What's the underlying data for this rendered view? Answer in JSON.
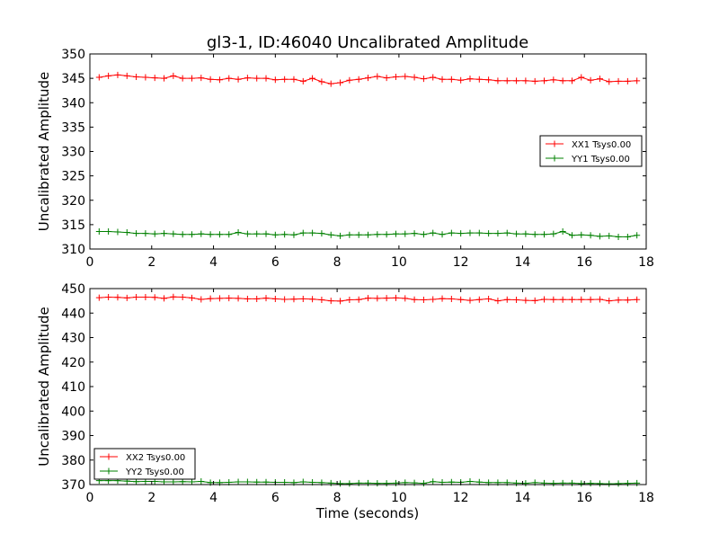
{
  "figure": {
    "title": "gl3-1, ID:46040 Uncalibrated Amplitude",
    "xlabel": "Time (seconds)"
  },
  "chart_data": [
    {
      "type": "line",
      "title": "gl3-1, ID:46040 Uncalibrated Amplitude",
      "xlabel": "",
      "ylabel": "Uncalibrated Amplitude",
      "xlim": [
        0,
        18
      ],
      "ylim": [
        310,
        350
      ],
      "xticks": [
        0,
        2,
        4,
        6,
        8,
        10,
        12,
        14,
        16,
        18
      ],
      "yticks": [
        310,
        315,
        320,
        325,
        330,
        335,
        340,
        345,
        350
      ],
      "grid": false,
      "legend_position": "center-right",
      "x": [
        0.3,
        0.6,
        0.9,
        1.2,
        1.5,
        1.8,
        2.1,
        2.4,
        2.7,
        3.0,
        3.3,
        3.6,
        3.9,
        4.2,
        4.5,
        4.8,
        5.1,
        5.4,
        5.7,
        6.0,
        6.3,
        6.6,
        6.9,
        7.2,
        7.5,
        7.8,
        8.1,
        8.4,
        8.7,
        9.0,
        9.3,
        9.6,
        9.9,
        10.2,
        10.5,
        10.8,
        11.1,
        11.4,
        11.7,
        12.0,
        12.3,
        12.6,
        12.9,
        13.2,
        13.5,
        13.8,
        14.1,
        14.4,
        14.7,
        15.0,
        15.3,
        15.6,
        15.9,
        16.2,
        16.5,
        16.8,
        17.1,
        17.4,
        17.7
      ],
      "series": [
        {
          "name": "XX1 Tsys0.00",
          "color": "#ff0000",
          "values": [
            345.2,
            345.5,
            345.7,
            345.5,
            345.3,
            345.2,
            345.1,
            345.0,
            345.5,
            345.0,
            345.0,
            345.1,
            344.8,
            344.7,
            345.0,
            344.8,
            345.1,
            345.0,
            345.0,
            344.7,
            344.8,
            344.8,
            344.4,
            345.0,
            344.3,
            343.9,
            344.1,
            344.6,
            344.8,
            345.1,
            345.4,
            345.1,
            345.3,
            345.4,
            345.2,
            344.9,
            345.2,
            344.8,
            344.8,
            344.6,
            344.9,
            344.8,
            344.7,
            344.5,
            344.5,
            344.5,
            344.5,
            344.4,
            344.5,
            344.7,
            344.5,
            344.5,
            345.2,
            344.6,
            344.9,
            344.3,
            344.4,
            344.4,
            344.5
          ]
        },
        {
          "name": "YY1 Tsys0.00",
          "color": "#008000",
          "values": [
            313.6,
            313.6,
            313.5,
            313.4,
            313.2,
            313.2,
            313.1,
            313.2,
            313.1,
            313.0,
            313.0,
            313.1,
            313.0,
            313.0,
            313.0,
            313.4,
            313.1,
            313.1,
            313.1,
            312.9,
            313.0,
            312.9,
            313.3,
            313.3,
            313.2,
            312.9,
            312.7,
            312.9,
            312.9,
            312.9,
            313.0,
            313.0,
            313.1,
            313.1,
            313.2,
            313.0,
            313.3,
            313.0,
            313.3,
            313.2,
            313.3,
            313.3,
            313.2,
            313.2,
            313.3,
            313.1,
            313.1,
            313.0,
            313.0,
            313.1,
            313.6,
            312.8,
            312.9,
            312.8,
            312.6,
            312.7,
            312.5,
            312.5,
            312.8
          ]
        }
      ]
    },
    {
      "type": "line",
      "title": "",
      "xlabel": "Time (seconds)",
      "ylabel": "Uncalibrated Amplitude",
      "xlim": [
        0,
        18
      ],
      "ylim": [
        370,
        450
      ],
      "xticks": [
        0,
        2,
        4,
        6,
        8,
        10,
        12,
        14,
        16,
        18
      ],
      "yticks": [
        370,
        380,
        390,
        400,
        410,
        420,
        430,
        440,
        450
      ],
      "grid": false,
      "legend_position": "lower-left",
      "x": [
        0.3,
        0.6,
        0.9,
        1.2,
        1.5,
        1.8,
        2.1,
        2.4,
        2.7,
        3.0,
        3.3,
        3.6,
        3.9,
        4.2,
        4.5,
        4.8,
        5.1,
        5.4,
        5.7,
        6.0,
        6.3,
        6.6,
        6.9,
        7.2,
        7.5,
        7.8,
        8.1,
        8.4,
        8.7,
        9.0,
        9.3,
        9.6,
        9.9,
        10.2,
        10.5,
        10.8,
        11.1,
        11.4,
        11.7,
        12.0,
        12.3,
        12.6,
        12.9,
        13.2,
        13.5,
        13.8,
        14.1,
        14.4,
        14.7,
        15.0,
        15.3,
        15.6,
        15.9,
        16.2,
        16.5,
        16.8,
        17.1,
        17.4,
        17.7
      ],
      "series": [
        {
          "name": "XX2 Tsys0.00",
          "color": "#ff0000",
          "values": [
            446.3,
            446.5,
            446.4,
            446.2,
            446.5,
            446.5,
            446.4,
            446.0,
            446.6,
            446.5,
            446.2,
            445.6,
            445.9,
            446.0,
            446.1,
            446.0,
            445.8,
            445.8,
            446.1,
            445.8,
            445.6,
            445.7,
            445.8,
            445.7,
            445.4,
            445.0,
            444.9,
            445.4,
            445.5,
            446.1,
            446.0,
            446.1,
            446.2,
            446.0,
            445.5,
            445.4,
            445.6,
            445.9,
            445.8,
            445.5,
            445.2,
            445.5,
            445.8,
            445.0,
            445.5,
            445.4,
            445.2,
            445.1,
            445.6,
            445.5,
            445.5,
            445.5,
            445.5,
            445.5,
            445.6,
            445.0,
            445.3,
            445.3,
            445.5
          ]
        },
        {
          "name": "YY2 Tsys0.00",
          "color": "#008000",
          "values": [
            371.6,
            371.6,
            371.6,
            371.4,
            371.2,
            371.3,
            371.3,
            371.1,
            371.1,
            371.2,
            371.1,
            371.3,
            370.8,
            370.8,
            370.9,
            371.1,
            371.1,
            371.0,
            371.0,
            370.9,
            370.9,
            370.8,
            371.1,
            370.9,
            370.8,
            370.6,
            370.4,
            370.4,
            370.6,
            370.6,
            370.5,
            370.5,
            370.6,
            370.8,
            370.7,
            370.5,
            371.2,
            370.9,
            371.0,
            370.9,
            371.3,
            371.0,
            370.8,
            370.8,
            370.8,
            370.6,
            370.5,
            370.8,
            370.6,
            370.5,
            370.6,
            370.6,
            370.4,
            370.5,
            370.4,
            370.3,
            370.4,
            370.5,
            370.6
          ]
        }
      ]
    }
  ]
}
